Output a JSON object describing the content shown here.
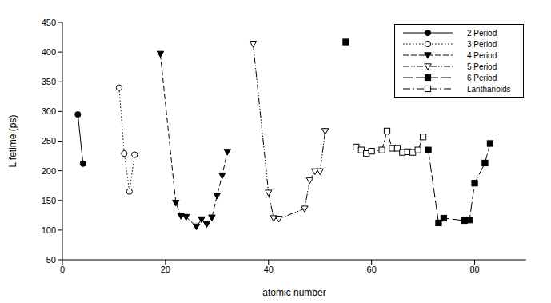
{
  "chart_data": {
    "type": "line",
    "x_label": "atomic number",
    "y_label": "Lifetime (ps)",
    "xlim": [
      0,
      90
    ],
    "xticks": [
      0,
      20,
      40,
      60,
      80
    ],
    "ylim": [
      50,
      450
    ],
    "yticks": [
      50,
      100,
      150,
      200,
      250,
      300,
      350,
      400,
      450
    ],
    "legend": "upper right",
    "series": [
      {
        "name": "2 Period",
        "color": "#000000",
        "marker": "filled_circle",
        "line_style": "solid",
        "x": [
          3,
          4
        ],
        "values": [
          295,
          212
        ]
      },
      {
        "name": "3 Period",
        "color": "#000000",
        "marker": "open_circle",
        "line_style": "dotted",
        "x": [
          11,
          12,
          13,
          14
        ],
        "values": [
          340,
          229,
          165,
          227
        ]
      },
      {
        "name": "4 Period",
        "color": "#000000",
        "marker": "filled_triangle_down",
        "line_style": "dashed",
        "x": [
          19,
          22,
          23,
          24,
          26,
          27,
          28,
          29,
          30,
          31,
          32
        ],
        "values": [
          397,
          146,
          124,
          122,
          106,
          118,
          110,
          121,
          158,
          192,
          232
        ]
      },
      {
        "name": "5 Period",
        "color": "#000000",
        "marker": "open_triangle_down",
        "line_style": "dashdotdot",
        "x": [
          37,
          40,
          41,
          42,
          47,
          48,
          49,
          50,
          51
        ],
        "values": [
          414,
          163,
          120,
          119,
          136,
          184,
          199,
          199,
          267
        ]
      },
      {
        "name": "6 Period",
        "color": "#000000",
        "marker": "filled_square",
        "line_style": "longdash",
        "x": [
          55,
          56,
          71,
          73,
          74,
          78,
          79,
          80,
          82,
          83
        ],
        "values": [
          417,
          null,
          235,
          112,
          120,
          116,
          117,
          179,
          213,
          246
        ]
      },
      {
        "name": "Lanthanoids",
        "color": "#000000",
        "marker": "open_square",
        "line_style": "dashdot",
        "x": [
          57,
          58,
          59,
          60,
          62,
          63,
          64,
          65,
          66,
          67,
          68,
          69,
          70
        ],
        "values": [
          240,
          235,
          229,
          233,
          235,
          267,
          238,
          238,
          231,
          232,
          231,
          235,
          257
        ]
      }
    ]
  }
}
